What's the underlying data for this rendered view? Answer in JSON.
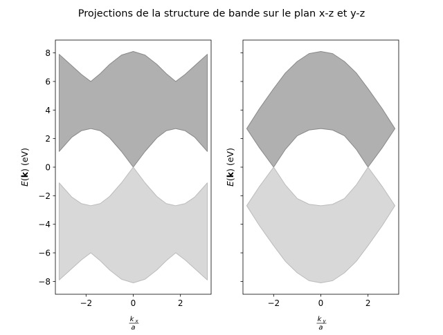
{
  "figure": {
    "title": "Projections de la structure de bande sur le plan x-z et y-z"
  },
  "chart_data": [
    {
      "type": "area",
      "panel": "x-z",
      "xlabel_num": "k",
      "xlabel_sub": "x",
      "xlabel_den": "a",
      "ylabel_main": "E(",
      "ylabel_bold": "k",
      "ylabel_tail": ") (eV)",
      "xlim": [
        -3.3,
        3.3
      ],
      "ylim": [
        -8.9,
        8.9
      ],
      "xticks": [
        -2,
        0,
        2
      ],
      "xtick_labels": [
        "−2",
        "0",
        "2"
      ],
      "yticks": [
        -8,
        -6,
        -4,
        -2,
        0,
        2,
        4,
        6,
        8
      ],
      "ytick_labels": [
        "−8",
        "−6",
        "−4",
        "−2",
        "0",
        "2",
        "4",
        "6",
        "8"
      ],
      "show_ytick_labels": true,
      "grid": false,
      "series": [
        {
          "role": "conduction band",
          "color": "#b0b0b0",
          "edge_color": "#888888",
          "x": [
            -3.14,
            -2.6,
            -2.2,
            -1.8,
            -1.4,
            -1.0,
            -0.5,
            0,
            0.5,
            1.0,
            1.4,
            1.8,
            2.2,
            2.6,
            3.14
          ],
          "upper": [
            7.9,
            7.1,
            6.5,
            6.0,
            6.55,
            7.2,
            7.85,
            8.1,
            7.85,
            7.2,
            6.55,
            6.0,
            6.5,
            7.1,
            7.9
          ],
          "lower": [
            1.1,
            2.1,
            2.55,
            2.7,
            2.55,
            2.05,
            1.1,
            0.0,
            1.1,
            2.05,
            2.55,
            2.7,
            2.55,
            2.1,
            1.1
          ]
        },
        {
          "role": "valence band",
          "color": "#d8d8d8",
          "edge_color": "#bbbbbb",
          "x": [
            -3.14,
            -2.6,
            -2.2,
            -1.8,
            -1.4,
            -1.0,
            -0.5,
            0,
            0.5,
            1.0,
            1.4,
            1.8,
            2.2,
            2.6,
            3.14
          ],
          "upper": [
            -1.1,
            -2.1,
            -2.55,
            -2.7,
            -2.55,
            -2.05,
            -1.1,
            0.0,
            -1.1,
            -2.05,
            -2.55,
            -2.7,
            -2.55,
            -2.1,
            -1.1
          ],
          "lower": [
            -7.9,
            -7.1,
            -6.5,
            -6.0,
            -6.55,
            -7.2,
            -7.85,
            -8.1,
            -7.85,
            -7.2,
            -6.55,
            -6.0,
            -6.5,
            -7.1,
            -7.9
          ]
        }
      ]
    },
    {
      "type": "area",
      "panel": "y-z",
      "xlabel_num": "k",
      "xlabel_sub": "y",
      "xlabel_den": "a",
      "ylabel_main": "E(",
      "ylabel_bold": "k",
      "ylabel_tail": ") (eV)",
      "xlim": [
        -3.3,
        3.3
      ],
      "ylim": [
        -8.9,
        8.9
      ],
      "xticks": [
        -2,
        0,
        2
      ],
      "xtick_labels": [
        "−2",
        "0",
        "2"
      ],
      "yticks": [
        -8,
        -6,
        -4,
        -2,
        0,
        2,
        4,
        6,
        8
      ],
      "ytick_labels": [
        "−8",
        "−6",
        "−4",
        "−2",
        "0",
        "2",
        "4",
        "6",
        "8"
      ],
      "show_ytick_labels": false,
      "grid": false,
      "series": [
        {
          "role": "conduction band",
          "color": "#b0b0b0",
          "edge_color": "#888888",
          "x": [
            -3.14,
            -2.6,
            -2.0,
            -1.5,
            -1.0,
            -0.5,
            0,
            0.5,
            1.0,
            1.5,
            2.0,
            2.6,
            3.14
          ],
          "upper": [
            2.7,
            4.1,
            5.5,
            6.6,
            7.4,
            7.95,
            8.1,
            7.95,
            7.4,
            6.6,
            5.5,
            4.1,
            2.7
          ],
          "lower": [
            2.7,
            1.35,
            0.0,
            1.25,
            2.2,
            2.6,
            2.7,
            2.6,
            2.2,
            1.25,
            0.0,
            1.35,
            2.7
          ]
        },
        {
          "role": "valence band",
          "color": "#d8d8d8",
          "edge_color": "#bbbbbb",
          "x": [
            -3.14,
            -2.6,
            -2.0,
            -1.5,
            -1.0,
            -0.5,
            0,
            0.5,
            1.0,
            1.5,
            2.0,
            2.6,
            3.14
          ],
          "upper": [
            -2.7,
            -1.35,
            0.0,
            -1.25,
            -2.2,
            -2.6,
            -2.7,
            -2.6,
            -2.2,
            -1.25,
            0.0,
            -1.35,
            -2.7
          ],
          "lower": [
            -2.7,
            -4.1,
            -5.5,
            -6.6,
            -7.4,
            -7.95,
            -8.1,
            -7.95,
            -7.4,
            -6.6,
            -5.5,
            -4.1,
            -2.7
          ]
        }
      ]
    }
  ]
}
